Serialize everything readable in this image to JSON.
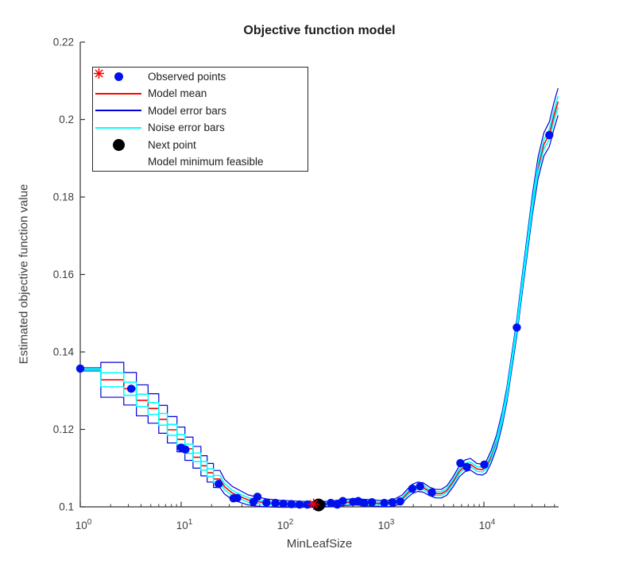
{
  "figure": {
    "background": "#ffffff"
  },
  "chart_data": {
    "type": "line",
    "title": "Objective function model",
    "xlabel": "MinLeafSize",
    "ylabel": "Estimated objective function value",
    "x_scale": "log10",
    "xlim": [
      1,
      55000
    ],
    "ylim": [
      0.1,
      0.22
    ],
    "grid": false,
    "legend_position": "top-left-inside",
    "axis_color": "#333333",
    "tick_label_color": "#3d3d3d",
    "y_ticks": [
      0.1,
      0.12,
      0.14,
      0.16,
      0.18,
      0.2,
      0.22
    ],
    "y_tick_labels": [
      "0.1",
      "0.12",
      "0.14",
      "0.16",
      "0.18",
      "0.2",
      "0.22"
    ],
    "x_tick_labels": [
      {
        "base": "10",
        "exp": "0",
        "value": 1
      },
      {
        "base": "10",
        "exp": "1",
        "value": 10
      },
      {
        "base": "10",
        "exp": "2",
        "value": 100
      },
      {
        "base": "10",
        "exp": "3",
        "value": 1000
      },
      {
        "base": "10",
        "exp": "4",
        "value": 10000
      }
    ],
    "series": {
      "model_mean": {
        "name": "Model mean",
        "color": "#ff0000",
        "x": [
          1,
          1.6,
          1.6,
          2.7,
          2.7,
          3.6,
          3.6,
          4.7,
          4.7,
          6,
          6,
          7.3,
          7.3,
          9.1,
          9.1,
          10.9,
          10.9,
          13.1,
          13.1,
          15.7,
          15.7,
          18.1,
          18.1,
          20.9,
          20.9,
          24.2,
          26.9,
          32,
          39,
          46,
          55,
          72,
          95,
          136,
          194,
          233,
          305,
          400,
          524,
          685,
          900,
          1075,
          1290,
          1540,
          1750,
          1950,
          2210,
          2500,
          2890,
          3330,
          3780,
          4290,
          4960,
          5720,
          6500,
          7360,
          8510,
          9650,
          10550,
          11750,
          13330,
          15200,
          16900,
          19100,
          21200,
          23500,
          26700,
          30300,
          34400,
          39300,
          44500,
          49500,
          54200
        ],
        "y": [
          0.1355,
          0.1355,
          0.1328,
          0.1328,
          0.1305,
          0.1305,
          0.1275,
          0.1275,
          0.1254,
          0.1254,
          0.1226,
          0.1226,
          0.1199,
          0.1199,
          0.1174,
          0.1174,
          0.115,
          0.115,
          0.1128,
          0.1128,
          0.1106,
          0.1106,
          0.1088,
          0.1088,
          0.1072,
          0.1072,
          0.1052,
          0.1036,
          0.1026,
          0.1018,
          0.1014,
          0.101,
          0.1008,
          0.1007,
          0.1006,
          0.1006,
          0.1008,
          0.1011,
          0.1013,
          0.1011,
          0.1009,
          0.1008,
          0.1011,
          0.102,
          0.1035,
          0.1046,
          0.1052,
          0.105,
          0.104,
          0.1034,
          0.1034,
          0.1042,
          0.1065,
          0.1092,
          0.1106,
          0.111,
          0.1098,
          0.1096,
          0.1103,
          0.1128,
          0.1168,
          0.1228,
          0.129,
          0.1383,
          0.1463,
          0.1557,
          0.167,
          0.1782,
          0.1875,
          0.1936,
          0.1962,
          0.201,
          0.2045
        ]
      },
      "model_error_bars": {
        "name": "Model error bars",
        "color": "#0000dd",
        "delta": [
          0.0004,
          0.0004,
          0.0045,
          0.0045,
          0.0042,
          0.0042,
          0.004,
          0.004,
          0.0038,
          0.0038,
          0.0036,
          0.0036,
          0.0034,
          0.0034,
          0.0032,
          0.0032,
          0.003,
          0.003,
          0.0028,
          0.0028,
          0.0026,
          0.0026,
          0.0024,
          0.0024,
          0.0022,
          0.0022,
          0.0019,
          0.0017,
          0.0015,
          0.0013,
          0.0012,
          0.001,
          0.0009,
          0.0008,
          0.0007,
          0.0007,
          0.0007,
          0.0008,
          0.0008,
          0.0008,
          0.0008,
          0.0008,
          0.0009,
          0.001,
          0.0011,
          0.0012,
          0.0012,
          0.0012,
          0.0011,
          0.0011,
          0.0011,
          0.0012,
          0.0013,
          0.0014,
          0.0015,
          0.0015,
          0.0014,
          0.0014,
          0.0015,
          0.0016,
          0.0017,
          0.0018,
          0.0019,
          0.002,
          0.0021,
          0.0022,
          0.0024,
          0.0026,
          0.0028,
          0.003,
          0.0032,
          0.0034,
          0.0035
        ]
      },
      "noise_error_bars": {
        "name": "Noise error bars",
        "color": "#00ffff",
        "delta": [
          0.0002,
          0.0002,
          0.0018,
          0.0018,
          0.0017,
          0.0017,
          0.0016,
          0.0016,
          0.0015,
          0.0015,
          0.0015,
          0.0015,
          0.0014,
          0.0014,
          0.0013,
          0.0013,
          0.0012,
          0.0012,
          0.0011,
          0.0011,
          0.0011,
          0.0011,
          0.001,
          0.001,
          0.0009,
          0.0009,
          0.0008,
          0.0007,
          0.0006,
          0.0006,
          0.0005,
          0.0004,
          0.0004,
          0.0004,
          0.0003,
          0.0003,
          0.0003,
          0.0004,
          0.0004,
          0.0004,
          0.0004,
          0.0004,
          0.0004,
          0.0004,
          0.0005,
          0.0005,
          0.0005,
          0.0005,
          0.0005,
          0.0005,
          0.0005,
          0.0005,
          0.0006,
          0.0006,
          0.0006,
          0.0006,
          0.0006,
          0.0006,
          0.0006,
          0.0007,
          0.0007,
          0.0008,
          0.0008,
          0.0008,
          0.0009,
          0.0009,
          0.001,
          0.0011,
          0.0012,
          0.0012,
          0.0013,
          0.0014,
          0.0014
        ]
      },
      "observed_points": {
        "name": "Observed points",
        "color": "#0011ee",
        "points": [
          [
            1,
            0.1357
          ],
          [
            3.2,
            0.1305
          ],
          [
            10,
            0.1153
          ],
          [
            11,
            0.1148
          ],
          [
            23.5,
            0.1059
          ],
          [
            33,
            0.1022
          ],
          [
            36,
            0.1023
          ],
          [
            52,
            0.1013
          ],
          [
            57,
            0.1026
          ],
          [
            70,
            0.1011
          ],
          [
            86,
            0.101
          ],
          [
            103,
            0.1008
          ],
          [
            124,
            0.1007
          ],
          [
            149,
            0.1006
          ],
          [
            178,
            0.1006
          ],
          [
            215,
            0.1006
          ],
          [
            250,
            0.1006
          ],
          [
            304,
            0.101
          ],
          [
            352,
            0.1006
          ],
          [
            400,
            0.1015
          ],
          [
            505,
            0.1013
          ],
          [
            568,
            0.1015
          ],
          [
            650,
            0.101
          ],
          [
            777,
            0.1012
          ],
          [
            1030,
            0.101
          ],
          [
            1240,
            0.1012
          ],
          [
            1480,
            0.1014
          ],
          [
            1950,
            0.1047
          ],
          [
            2330,
            0.1053
          ],
          [
            3050,
            0.1037
          ],
          [
            5850,
            0.1113
          ],
          [
            6780,
            0.1103
          ],
          [
            10100,
            0.1109
          ],
          [
            21200,
            0.1463
          ],
          [
            44500,
            0.196
          ]
        ]
      },
      "next_point": {
        "name": "Next point",
        "color": "#000000",
        "points": [
          [
            230,
            0.1005
          ]
        ]
      },
      "model_minimum_feasible": {
        "name": "Model minimum feasible",
        "color": "#ff0000",
        "points": [
          [
            205,
            0.1007
          ]
        ]
      }
    }
  },
  "legend": {
    "items": [
      {
        "label": "Observed points",
        "marker": "dot",
        "color": "#0011ee",
        "size": 11
      },
      {
        "label": "Model mean",
        "marker": "line",
        "color": "#ff0000",
        "size": 2
      },
      {
        "label": "Model error bars",
        "marker": "line",
        "color": "#0000dd",
        "size": 2
      },
      {
        "label": "Noise error bars",
        "marker": "line",
        "color": "#00ffff",
        "size": 2
      },
      {
        "label": "Next point",
        "marker": "dot",
        "color": "#000000",
        "size": 15
      },
      {
        "label": "Model minimum feasible",
        "marker": "asterisk",
        "color": "#ff0000",
        "size": 15
      }
    ]
  }
}
